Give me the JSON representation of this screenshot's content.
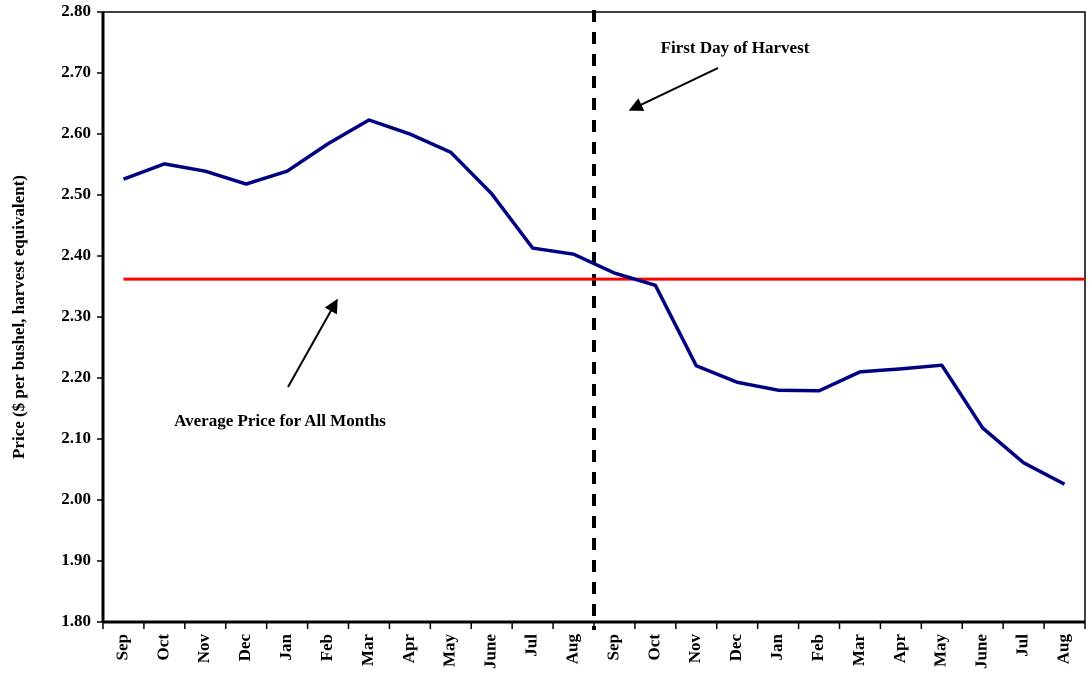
{
  "chart_data": {
    "type": "line",
    "y_label": "Price ($ per bushel, harvest equivalent)",
    "categories": [
      "Sep",
      "Oct",
      "Nov",
      "Dec",
      "Jan",
      "Feb",
      "Mar",
      "Apr",
      "May",
      "June",
      "Jul",
      "Aug",
      "Sep",
      "Oct",
      "Nov",
      "Dec",
      "Jan",
      "Feb",
      "Mar",
      "Apr",
      "May",
      "June",
      "Jul",
      "Aug"
    ],
    "series": [
      {
        "color": "#000080",
        "values": [
          2.526,
          2.551,
          2.539,
          2.518,
          2.539,
          2.584,
          2.623,
          2.6,
          2.57,
          2.502,
          2.413,
          2.403,
          2.372,
          2.352,
          2.22,
          2.193,
          2.18,
          2.179,
          2.21,
          2.215,
          2.221,
          2.118,
          2.061,
          2.026
        ]
      }
    ],
    "reference_line": {
      "value": 2.362,
      "color": "#ff0000"
    },
    "vline_at_category": 12,
    "annotations": [
      "First Day of Harvest",
      "Average Price for All Months"
    ],
    "ylim": [
      1.8,
      2.8
    ],
    "yticks": [
      {
        "value": 1.8,
        "label": "1.80"
      },
      {
        "value": 1.9,
        "label": "1.90"
      },
      {
        "value": 2.0,
        "label": "2.00"
      },
      {
        "value": 2.1,
        "label": "2.10"
      },
      {
        "value": 2.2,
        "label": "2.20"
      },
      {
        "value": 2.3,
        "label": "2.30"
      },
      {
        "value": 2.4,
        "label": "2.40"
      },
      {
        "value": 2.5,
        "label": "2.50"
      },
      {
        "value": 2.6,
        "label": "2.60"
      },
      {
        "value": 2.7,
        "label": "2.70"
      },
      {
        "value": 2.8,
        "label": "2.80"
      }
    ]
  }
}
